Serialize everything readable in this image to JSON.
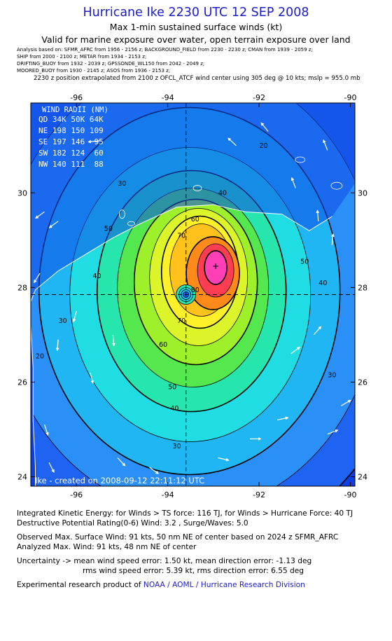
{
  "header": {
    "title": "Hurricane Ike 2230 UTC 12 SEP 2008",
    "subtitle": "Max 1-min sustained surface winds (kt)",
    "validity": "Valid for marine exposure over water, open terrain exposure over land"
  },
  "analysis_lines": [
    "Analysis based on: SFMR_AFRC from 1956 - 2156 z; BACKGROUND_FIELD from 2230 - 2230 z; CMAN from 1939 - 2059 z;",
    "SHIP from 2000 - 2100 z; METAR from 1934 - 2153 z;",
    "DRIFTING_BUOY from 1932 - 2039 z; GPSSONDE_WL150 from 2042 - 2049 z;",
    "MOORED_BUOY from 1930 - 2145 z; ASOS from 1936 - 2153 z;"
  ],
  "position_line": "2230 z position extrapolated from 2100 z OFCL_ATCF wind center using 305 deg @ 10 kts; mslp = 955.0 mb",
  "map": {
    "lon_ticks": [
      -96,
      -94,
      -92,
      -90
    ],
    "lat_ticks": [
      30,
      28,
      26,
      24
    ],
    "lon_range": [
      -97.0,
      -89.9
    ],
    "lat_range": [
      23.8,
      31.9
    ],
    "center": {
      "lon": -93.6,
      "lat": 27.85
    },
    "max_wind_location": {
      "lon": -92.95,
      "lat": 28.45
    },
    "contour_labels": [
      {
        "text": "20",
        "lon": -91.9,
        "lat": 30.95
      },
      {
        "text": "30",
        "lon": -95.0,
        "lat": 30.15
      },
      {
        "text": "40",
        "lon": -92.8,
        "lat": 29.95
      },
      {
        "text": "50",
        "lon": -95.3,
        "lat": 29.2
      },
      {
        "text": "60",
        "lon": -93.4,
        "lat": 29.4
      },
      {
        "text": "70",
        "lon": -93.7,
        "lat": 29.05
      },
      {
        "text": "40",
        "lon": -95.55,
        "lat": 28.2
      },
      {
        "text": "30",
        "lon": -96.3,
        "lat": 27.25
      },
      {
        "text": "20",
        "lon": -96.8,
        "lat": 26.5
      },
      {
        "text": "70",
        "lon": -93.7,
        "lat": 27.25
      },
      {
        "text": "60",
        "lon": -94.1,
        "lat": 26.75
      },
      {
        "text": "50",
        "lon": -93.9,
        "lat": 25.85
      },
      {
        "text": "40",
        "lon": -93.85,
        "lat": 25.4
      },
      {
        "text": "30",
        "lon": -93.8,
        "lat": 24.6
      },
      {
        "text": "50",
        "lon": -91.0,
        "lat": 28.5
      },
      {
        "text": "40",
        "lon": -90.6,
        "lat": 28.05
      },
      {
        "text": "30",
        "lon": -90.4,
        "lat": 26.1
      },
      {
        "text": "80",
        "lon": -93.4,
        "lat": 27.9
      }
    ],
    "wind_radii": {
      "title": "WIND RADII (NM)",
      "rows": [
        "QD 34K 50K 64K",
        "NE 198 150 109",
        "SE 197 146  95",
        "SW 182 124  60",
        "NW 140 111  88"
      ]
    },
    "credit": "Ike - created on 2008-09-12 22:11:12 UTC",
    "colors": {
      "background": "#0b3fe6",
      "levels": [
        "#1e63f2",
        "#2b8ff8",
        "#1fb6f3",
        "#20dce3",
        "#26e6ad",
        "#55e84e",
        "#9ef02a",
        "#dbf52a",
        "#fff02a",
        "#ffc21c",
        "#ff8a1a",
        "#ff3d52",
        "#ff3fb6"
      ],
      "land": "#0d4ae8",
      "coast": "#ffffff"
    }
  },
  "info": {
    "ike": "Integrated Kinetic Energy:  for Winds > TS force: 116 TJ,  for Winds > Hurricane Force: 40 TJ",
    "dpr": "Destructive Potential Rating(0-6)   Wind: 3.2 , Surge/Waves: 5.0",
    "observed": "Observed Max. Surface Wind: 91 kts, 50 nm NE of center based on 2024 z SFMR_AFRC",
    "analyzed": "Analyzed Max. Wind: 91 kts, 48 nm NE of center",
    "uncertainty_1": "Uncertainty -> mean wind speed error: 1.50 kt,   mean direction error:  -1.13 deg",
    "uncertainty_2": "rms wind speed error: 5.39 kt,   rms direction error: 6.55 deg",
    "product_prefix": "Experimental research product of",
    "product_link": "NOAA / AOML / Hurricane Research Division"
  }
}
